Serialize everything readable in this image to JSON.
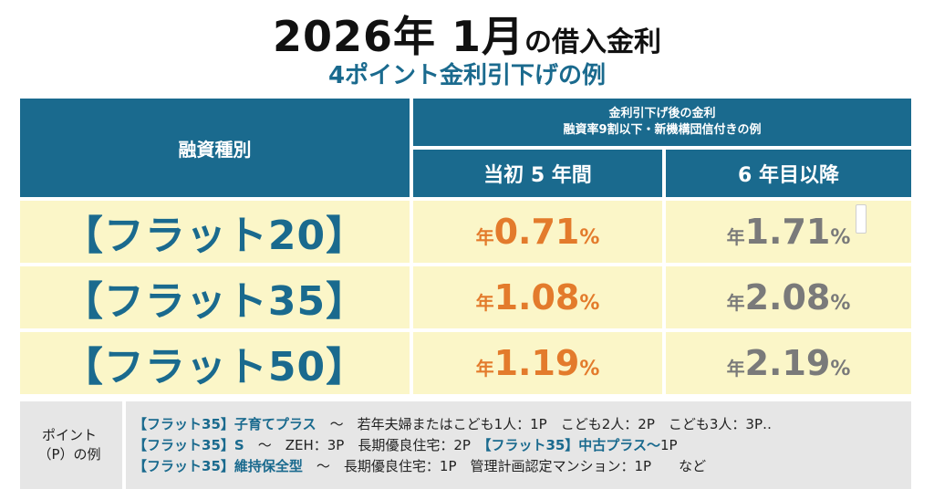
{
  "title": {
    "year_month": "2026年 1月",
    "suffix": "の借入金利"
  },
  "subtitle": "4ポイント金利引下げの例",
  "table": {
    "header_left": "融資種別",
    "header_top_line1": "金利引下げ後の金利",
    "header_top_line2": "融資率9割以下・新機構団信付きの例",
    "header_col2": "当初 5 年間",
    "header_col3": "6 年目以降",
    "rows": [
      {
        "name": "【フラット20】",
        "initial_prefix": "年",
        "initial_value": "0.71",
        "initial_unit": "%",
        "later_prefix": "年",
        "later_value": "1.71",
        "later_unit": "%"
      },
      {
        "name": "【フラット35】",
        "initial_prefix": "年",
        "initial_value": "1.08",
        "initial_unit": "%",
        "later_prefix": "年",
        "later_value": "2.08",
        "later_unit": "%"
      },
      {
        "name": "【フラット50】",
        "initial_prefix": "年",
        "initial_value": "1.19",
        "initial_unit": "%",
        "later_prefix": "年",
        "later_value": "2.19",
        "later_unit": "%"
      }
    ]
  },
  "points": {
    "label_line1": "ポイント",
    "label_line2": "（P）の例",
    "line1_title": "【フラット35】子育てプラス",
    "line1_text": "〜　若年夫婦またはこども1人：1P　こども2人：2P　こども3人：3P‥",
    "line2_title": "【フラット35】S",
    "line2_text": "〜　ZEH：3P　長期優良住宅：2P",
    "line2_title2": "【フラット35】中古プラス〜",
    "line2_text2": "1P",
    "line3_title": "【フラット35】維持保全型",
    "line3_text": "〜　長期優良住宅：1P　管理計画認定マンション：1P　　など"
  },
  "colors": {
    "header_bg": "#1a6a8e",
    "row_bg": "#fbf6c8",
    "initial_rate": "#e37b2c",
    "later_rate": "#7a7a7a",
    "note_bg": "#e6e6e6"
  }
}
